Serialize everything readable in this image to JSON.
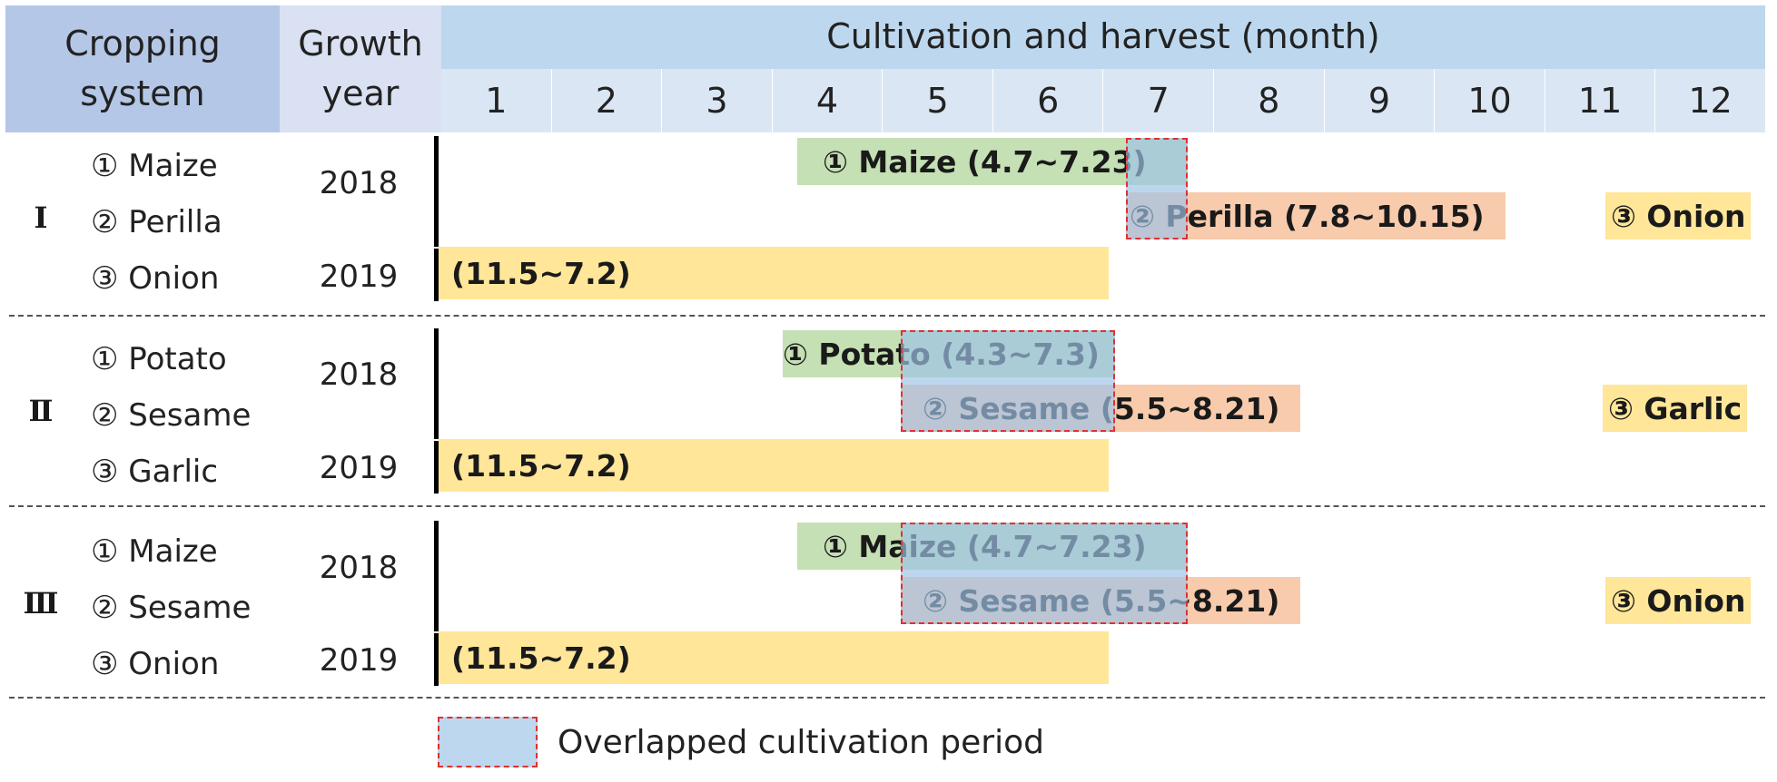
{
  "header": {
    "cropping_system_line1": "Cropping",
    "cropping_system_line2": "system",
    "growth_year_line1": "Growth",
    "growth_year_line2": "year",
    "title": "Cultivation and harvest (month)",
    "months": [
      "1",
      "2",
      "3",
      "4",
      "5",
      "6",
      "7",
      "8",
      "9",
      "10",
      "11",
      "12"
    ]
  },
  "systems": [
    {
      "numeral": "Ⅰ",
      "crops": [
        "① Maize",
        "② Perilla",
        "③ Onion"
      ],
      "years": [
        "2018",
        "2019"
      ],
      "bars": {
        "first": "① Maize (4.7~7.23)",
        "second": "② Perilla (7.8~10.15)",
        "third_label": "③ Onion",
        "third_period": "(11.5~7.2)"
      }
    },
    {
      "numeral": "Ⅱ",
      "crops": [
        "① Potato",
        "② Sesame",
        "③ Garlic"
      ],
      "years": [
        "2018",
        "2019"
      ],
      "bars": {
        "first": "① Potato (4.3~7.3)",
        "second": "② Sesame (5.5~8.21)",
        "third_label": "③ Garlic",
        "third_period": "(11.5~7.2)"
      }
    },
    {
      "numeral": "Ⅲ",
      "crops": [
        "① Maize",
        "② Sesame",
        "③ Onion"
      ],
      "years": [
        "2018",
        "2019"
      ],
      "bars": {
        "first": "① Maize (4.7~7.23)",
        "second": "② Sesame (5.5~8.21)",
        "third_label": "③ Onion",
        "third_period": "(11.5~7.2)"
      }
    }
  ],
  "legend": {
    "label": "Overlapped cultivation period"
  },
  "colors": {
    "header_dark": "#b4c7e7",
    "header_light": "#d9e1f2",
    "month_row": "#dae6f3",
    "first_crop": "#c5e0b4",
    "second_crop": "#f8cbad",
    "third_crop": "#ffe699",
    "overlap": "#9dc3e6",
    "overlap_border": "#e03030"
  }
}
